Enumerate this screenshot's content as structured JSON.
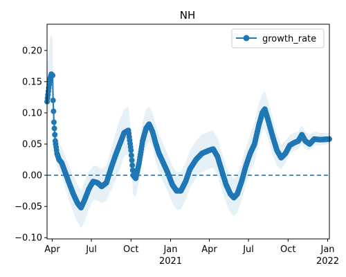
{
  "chart_data": {
    "type": "line",
    "title": "NH",
    "xlabel": "",
    "ylabel": "",
    "legend": {
      "location": "top-right",
      "entries": [
        "growth_rate"
      ]
    },
    "grid": false,
    "x_range": [
      "2020-03-20",
      "2022-01-05"
    ],
    "ylim": [
      -0.102,
      0.242
    ],
    "x_ticks": [
      {
        "date": "2020-04-01",
        "label": "Apr",
        "year_label": ""
      },
      {
        "date": "2020-07-01",
        "label": "Jul",
        "year_label": ""
      },
      {
        "date": "2020-10-01",
        "label": "Oct",
        "year_label": ""
      },
      {
        "date": "2021-01-01",
        "label": "Jan",
        "year_label": "2021"
      },
      {
        "date": "2021-04-01",
        "label": "Apr",
        "year_label": ""
      },
      {
        "date": "2021-07-01",
        "label": "Jul",
        "year_label": ""
      },
      {
        "date": "2021-10-01",
        "label": "Oct",
        "year_label": ""
      },
      {
        "date": "2022-01-01",
        "label": "Jan",
        "year_label": "2022"
      }
    ],
    "y_ticks": [
      {
        "value": -0.1,
        "label": "−0.10"
      },
      {
        "value": -0.05,
        "label": "−0.05"
      },
      {
        "value": 0.0,
        "label": "0.00"
      },
      {
        "value": 0.05,
        "label": "0.05"
      },
      {
        "value": 0.1,
        "label": "0.10"
      },
      {
        "value": 0.15,
        "label": "0.15"
      },
      {
        "value": 0.2,
        "label": "0.20"
      }
    ],
    "reference_line": {
      "y": 0.0,
      "style": "dashed"
    },
    "colors": {
      "line": "#1f77b4",
      "band": "#1f77b4"
    },
    "series": [
      {
        "name": "growth_rate",
        "points": [
          {
            "x": "2020-03-20",
            "y": 0.118,
            "lo": 0.085,
            "hi": 0.165
          },
          {
            "x": "2020-03-24",
            "y": 0.14,
            "lo": 0.1,
            "hi": 0.2
          },
          {
            "x": "2020-03-27",
            "y": 0.155,
            "lo": 0.11,
            "hi": 0.22
          },
          {
            "x": "2020-03-30",
            "y": 0.162,
            "lo": 0.12,
            "hi": 0.225
          },
          {
            "x": "2020-04-02",
            "y": 0.16,
            "lo": 0.12,
            "hi": 0.215
          },
          {
            "x": "2020-04-03",
            "y": 0.12,
            "lo": 0.09,
            "hi": 0.17
          },
          {
            "x": "2020-04-05",
            "y": 0.085,
            "lo": 0.06,
            "hi": 0.13
          },
          {
            "x": "2020-04-08",
            "y": 0.055,
            "lo": 0.03,
            "hi": 0.09
          },
          {
            "x": "2020-04-12",
            "y": 0.035,
            "lo": 0.015,
            "hi": 0.065
          },
          {
            "x": "2020-04-17",
            "y": 0.025,
            "lo": 0.005,
            "hi": 0.05
          },
          {
            "x": "2020-04-23",
            "y": 0.02,
            "lo": 0.0,
            "hi": 0.045
          },
          {
            "x": "2020-05-01",
            "y": 0.005,
            "lo": -0.02,
            "hi": 0.03
          },
          {
            "x": "2020-05-10",
            "y": -0.012,
            "lo": -0.04,
            "hi": 0.015
          },
          {
            "x": "2020-05-20",
            "y": -0.03,
            "lo": -0.06,
            "hi": 0.0
          },
          {
            "x": "2020-05-30",
            "y": -0.045,
            "lo": -0.075,
            "hi": -0.015
          },
          {
            "x": "2020-06-07",
            "y": -0.052,
            "lo": -0.085,
            "hi": -0.025
          },
          {
            "x": "2020-06-15",
            "y": -0.04,
            "lo": -0.075,
            "hi": -0.01
          },
          {
            "x": "2020-06-25",
            "y": -0.022,
            "lo": -0.055,
            "hi": 0.005
          },
          {
            "x": "2020-07-05",
            "y": -0.01,
            "lo": -0.04,
            "hi": 0.015
          },
          {
            "x": "2020-07-15",
            "y": -0.012,
            "lo": -0.04,
            "hi": 0.015
          },
          {
            "x": "2020-07-25",
            "y": -0.018,
            "lo": -0.045,
            "hi": 0.01
          },
          {
            "x": "2020-08-05",
            "y": -0.012,
            "lo": -0.04,
            "hi": 0.015
          },
          {
            "x": "2020-08-15",
            "y": 0.01,
            "lo": -0.025,
            "hi": 0.04
          },
          {
            "x": "2020-08-25",
            "y": 0.03,
            "lo": -0.01,
            "hi": 0.065
          },
          {
            "x": "2020-09-05",
            "y": 0.05,
            "lo": 0.01,
            "hi": 0.09
          },
          {
            "x": "2020-09-15",
            "y": 0.068,
            "lo": 0.03,
            "hi": 0.105
          },
          {
            "x": "2020-09-25",
            "y": 0.072,
            "lo": 0.035,
            "hi": 0.11
          },
          {
            "x": "2020-10-01",
            "y": 0.04,
            "lo": 0.01,
            "hi": 0.075
          },
          {
            "x": "2020-10-06",
            "y": 0.0,
            "lo": -0.03,
            "hi": 0.035
          },
          {
            "x": "2020-10-12",
            "y": -0.005,
            "lo": -0.035,
            "hi": 0.025
          },
          {
            "x": "2020-10-20",
            "y": 0.02,
            "lo": -0.01,
            "hi": 0.05
          },
          {
            "x": "2020-10-28",
            "y": 0.055,
            "lo": 0.025,
            "hi": 0.085
          },
          {
            "x": "2020-11-05",
            "y": 0.075,
            "lo": 0.045,
            "hi": 0.105
          },
          {
            "x": "2020-11-12",
            "y": 0.082,
            "lo": 0.055,
            "hi": 0.11
          },
          {
            "x": "2020-11-20",
            "y": 0.07,
            "lo": 0.045,
            "hi": 0.1
          },
          {
            "x": "2020-11-28",
            "y": 0.05,
            "lo": 0.02,
            "hi": 0.08
          },
          {
            "x": "2020-12-05",
            "y": 0.035,
            "lo": 0.005,
            "hi": 0.065
          },
          {
            "x": "2020-12-15",
            "y": 0.02,
            "lo": -0.01,
            "hi": 0.05
          },
          {
            "x": "2020-12-25",
            "y": 0.005,
            "lo": -0.025,
            "hi": 0.035
          },
          {
            "x": "2021-01-05",
            "y": -0.015,
            "lo": -0.045,
            "hi": 0.015
          },
          {
            "x": "2021-01-15",
            "y": -0.025,
            "lo": -0.055,
            "hi": 0.005
          },
          {
            "x": "2021-01-25",
            "y": -0.025,
            "lo": -0.055,
            "hi": 0.005
          },
          {
            "x": "2021-02-05",
            "y": -0.01,
            "lo": -0.04,
            "hi": 0.02
          },
          {
            "x": "2021-02-15",
            "y": 0.01,
            "lo": -0.02,
            "hi": 0.04
          },
          {
            "x": "2021-03-01",
            "y": 0.025,
            "lo": -0.005,
            "hi": 0.055
          },
          {
            "x": "2021-03-15",
            "y": 0.035,
            "lo": 0.005,
            "hi": 0.065
          },
          {
            "x": "2021-04-01",
            "y": 0.04,
            "lo": 0.01,
            "hi": 0.07
          },
          {
            "x": "2021-04-10",
            "y": 0.042,
            "lo": 0.012,
            "hi": 0.072
          },
          {
            "x": "2021-04-20",
            "y": 0.03,
            "lo": 0.0,
            "hi": 0.06
          },
          {
            "x": "2021-05-01",
            "y": 0.005,
            "lo": -0.025,
            "hi": 0.035
          },
          {
            "x": "2021-05-10",
            "y": -0.015,
            "lo": -0.045,
            "hi": 0.015
          },
          {
            "x": "2021-05-20",
            "y": -0.03,
            "lo": -0.06,
            "hi": 0.0
          },
          {
            "x": "2021-05-28",
            "y": -0.036,
            "lo": -0.065,
            "hi": -0.005
          },
          {
            "x": "2021-06-05",
            "y": -0.03,
            "lo": -0.06,
            "hi": 0.0
          },
          {
            "x": "2021-06-15",
            "y": -0.01,
            "lo": -0.04,
            "hi": 0.02
          },
          {
            "x": "2021-06-25",
            "y": 0.015,
            "lo": -0.015,
            "hi": 0.045
          },
          {
            "x": "2021-07-05",
            "y": 0.035,
            "lo": 0.005,
            "hi": 0.065
          },
          {
            "x": "2021-07-15",
            "y": 0.05,
            "lo": 0.02,
            "hi": 0.085
          },
          {
            "x": "2021-07-25",
            "y": 0.08,
            "lo": 0.05,
            "hi": 0.115
          },
          {
            "x": "2021-08-02",
            "y": 0.1,
            "lo": 0.07,
            "hi": 0.13
          },
          {
            "x": "2021-08-08",
            "y": 0.106,
            "lo": 0.075,
            "hi": 0.135
          },
          {
            "x": "2021-08-15",
            "y": 0.09,
            "lo": 0.06,
            "hi": 0.12
          },
          {
            "x": "2021-08-25",
            "y": 0.065,
            "lo": 0.035,
            "hi": 0.095
          },
          {
            "x": "2021-09-05",
            "y": 0.04,
            "lo": 0.015,
            "hi": 0.065
          },
          {
            "x": "2021-09-15",
            "y": 0.028,
            "lo": 0.01,
            "hi": 0.05
          },
          {
            "x": "2021-09-25",
            "y": 0.035,
            "lo": 0.02,
            "hi": 0.055
          },
          {
            "x": "2021-10-05",
            "y": 0.048,
            "lo": 0.035,
            "hi": 0.065
          },
          {
            "x": "2021-10-15",
            "y": 0.052,
            "lo": 0.04,
            "hi": 0.068
          },
          {
            "x": "2021-10-25",
            "y": 0.055,
            "lo": 0.042,
            "hi": 0.07
          },
          {
            "x": "2021-11-02",
            "y": 0.065,
            "lo": 0.05,
            "hi": 0.08
          },
          {
            "x": "2021-11-10",
            "y": 0.055,
            "lo": 0.042,
            "hi": 0.07
          },
          {
            "x": "2021-11-20",
            "y": 0.05,
            "lo": 0.04,
            "hi": 0.065
          },
          {
            "x": "2021-12-01",
            "y": 0.058,
            "lo": 0.048,
            "hi": 0.07
          },
          {
            "x": "2021-12-15",
            "y": 0.057,
            "lo": 0.048,
            "hi": 0.068
          },
          {
            "x": "2022-01-05",
            "y": 0.058,
            "lo": 0.05,
            "hi": 0.068
          }
        ]
      }
    ]
  }
}
